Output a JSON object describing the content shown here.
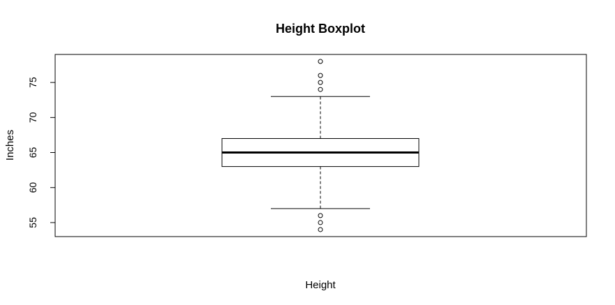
{
  "chart_data": {
    "type": "boxplot",
    "title": "Height Boxplot",
    "xlabel": "Height",
    "ylabel": "Inches",
    "ylim": [
      53,
      79
    ],
    "yticks": [
      55,
      60,
      65,
      70,
      75
    ],
    "grid": false,
    "legend": "none",
    "box": {
      "whisker_low": 57,
      "q1": 63,
      "median": 65,
      "q3": 67,
      "whisker_high": 73,
      "outliers": [
        54,
        55,
        56,
        74,
        75,
        76,
        78
      ]
    },
    "colors": {
      "stroke": "#000000",
      "background": "#ffffff"
    }
  }
}
